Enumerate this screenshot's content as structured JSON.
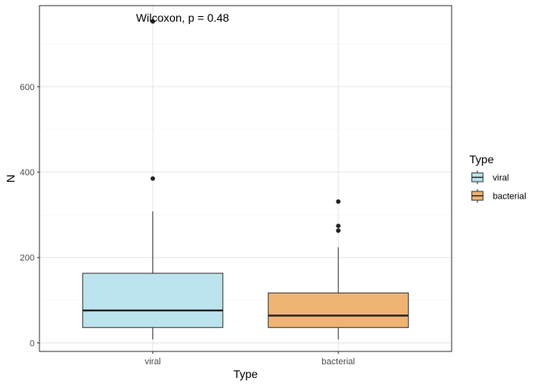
{
  "chart_data": {
    "type": "boxplot",
    "categories": [
      "viral",
      "bacterial"
    ],
    "xlabel": "Type",
    "ylabel": "N",
    "ylim": [
      -20,
      790
    ],
    "yticks": [
      0,
      200,
      400,
      600
    ],
    "grid": true,
    "annotation": "Wilcoxon, p = 0.48",
    "legend": {
      "title": "Type",
      "placement": "right",
      "entries": [
        {
          "label": "viral",
          "color": "#bbe4ee"
        },
        {
          "label": "bacterial",
          "color": "#f0b472"
        }
      ]
    },
    "boxes": [
      {
        "category": "viral",
        "color": "#bbe4ee",
        "lower_whisker": 8,
        "q1": 36,
        "median": 76,
        "q3": 163,
        "upper_whisker": 308,
        "outliers": [
          385,
          753
        ]
      },
      {
        "category": "bacterial",
        "color": "#f0b472",
        "lower_whisker": 8,
        "q1": 36,
        "median": 64,
        "q3": 117,
        "upper_whisker": 224,
        "outliers": [
          263,
          274,
          331
        ]
      }
    ]
  }
}
